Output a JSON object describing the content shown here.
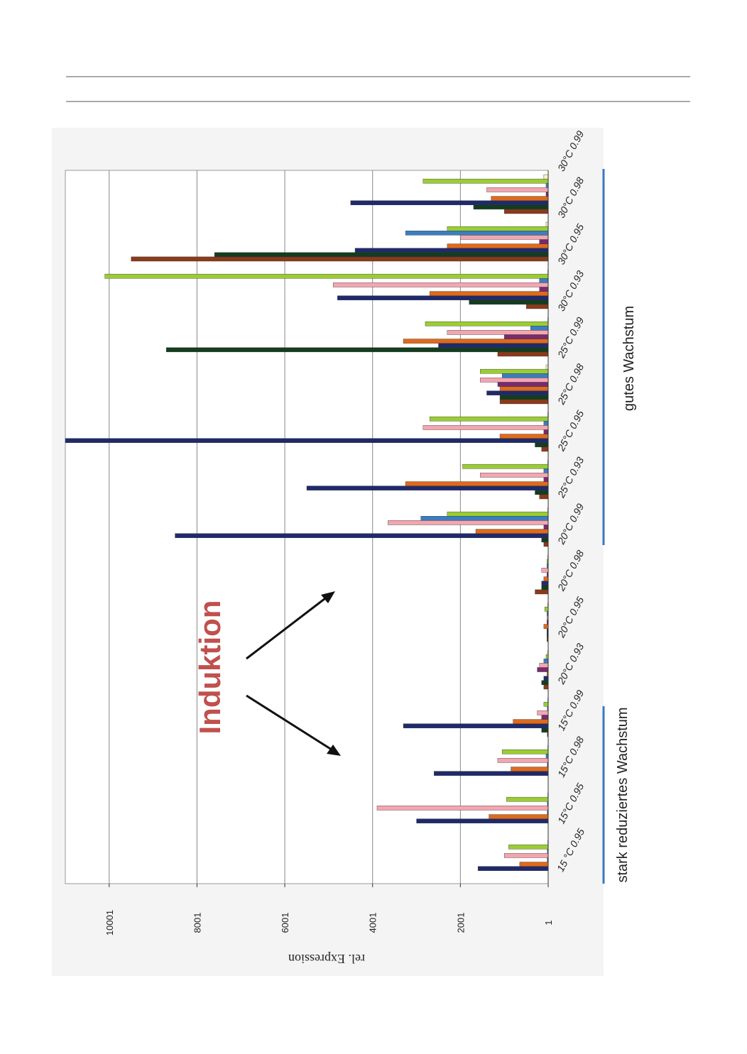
{
  "chart_data": {
    "type": "bar",
    "orientation": "rotated-ccw",
    "ylabel": "rel. Expression",
    "annotations": {
      "induction": "Induktion",
      "good": "gutes Wachstum",
      "reduced": "stark reduziertes Wachstum"
    },
    "categories": [
      "15 °C 0.95",
      "15°C 0.95",
      "15°C 0.98",
      "15°C 0.99",
      "20°C 0.93",
      "20°C 0.95",
      "20°C 0.98",
      "20°C 0.99",
      "25°C 0.93",
      "25°C 0.95",
      "25°C 0.98",
      "25°C 0.99",
      "30°C 0.93",
      "30°C 0.95",
      "30°C 0.98",
      "30°C 0.99"
    ],
    "ylim": [
      1,
      11000
    ],
    "yticks": [
      1,
      2001,
      4001,
      6001,
      8001,
      10001
    ],
    "grid": true,
    "series": [
      {
        "color": "#8b3a1a",
        "values": [
          0,
          0,
          0,
          20,
          100,
          30,
          300,
          100,
          200,
          150,
          1100,
          1150,
          500,
          9500,
          1000,
          null
        ]
      },
      {
        "color": "#123d1e",
        "values": [
          0,
          0,
          0,
          150,
          150,
          30,
          150,
          150,
          300,
          300,
          1100,
          8700,
          1800,
          7600,
          1700,
          null
        ]
      },
      {
        "color": "#1f2a6b",
        "values": [
          1600,
          3000,
          2600,
          3300,
          100,
          30,
          150,
          8500,
          5500,
          11000,
          1400,
          2500,
          4800,
          4400,
          4500,
          null
        ]
      },
      {
        "color": "#e06a1b",
        "values": [
          650,
          1350,
          850,
          800,
          30,
          100,
          100,
          1650,
          3250,
          1100,
          1100,
          3300,
          2700,
          2300,
          1300,
          null
        ]
      },
      {
        "color": "#7a2a6e",
        "values": [
          20,
          20,
          20,
          150,
          250,
          30,
          30,
          100,
          100,
          100,
          1150,
          1000,
          200,
          200,
          50,
          null
        ]
      },
      {
        "color": "#f4a6b0",
        "values": [
          1000,
          3900,
          1150,
          250,
          200,
          30,
          150,
          3650,
          1550,
          2850,
          1550,
          2300,
          4900,
          2000,
          1400,
          null
        ]
      },
      {
        "color": "#3a7ec0",
        "values": [
          20,
          20,
          50,
          20,
          100,
          30,
          30,
          2900,
          100,
          100,
          1050,
          400,
          200,
          3250,
          50,
          null
        ]
      },
      {
        "color": "#9acd32",
        "values": [
          900,
          950,
          1050,
          100,
          50,
          80,
          30,
          2300,
          1950,
          2700,
          1550,
          2800,
          10100,
          2300,
          2850,
          null
        ]
      },
      {
        "color": "#f5f0c8",
        "values": [
          10,
          10,
          10,
          10,
          10,
          10,
          10,
          10,
          10,
          10,
          50,
          10,
          10,
          50,
          100,
          null
        ]
      }
    ]
  }
}
